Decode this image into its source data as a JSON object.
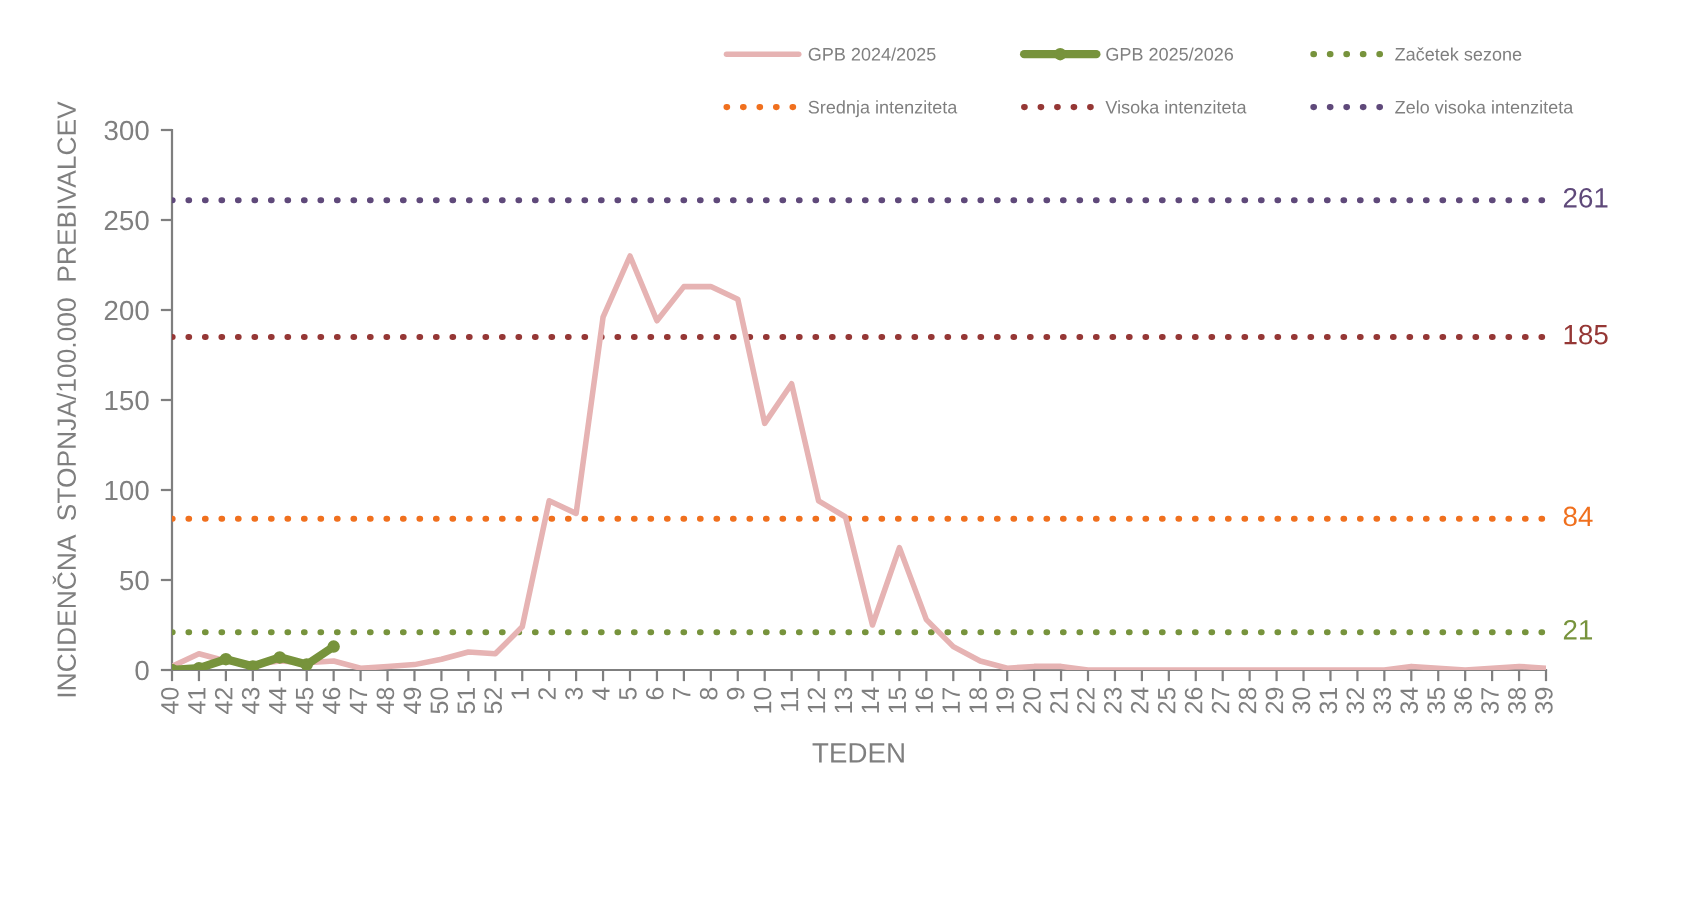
{
  "chart_data": {
    "type": "line",
    "xlabel": "TEDEN",
    "ylabel": "INCIDENČNA  STOPNJA/100.000  PREBIVALCEV",
    "categories": [
      "40",
      "41",
      "42",
      "43",
      "44",
      "45",
      "46",
      "47",
      "48",
      "49",
      "50",
      "51",
      "52",
      "1",
      "2",
      "3",
      "4",
      "5",
      "6",
      "7",
      "8",
      "9",
      "10",
      "11",
      "12",
      "13",
      "14",
      "15",
      "16",
      "17",
      "18",
      "19",
      "20",
      "21",
      "22",
      "23",
      "24",
      "25",
      "26",
      "27",
      "28",
      "29",
      "30",
      "31",
      "32",
      "33",
      "34",
      "35",
      "36",
      "37",
      "38",
      "39"
    ],
    "series": [
      {
        "name": "GPB 2024/2025",
        "color": "#e6b3b3",
        "line_style": "solid",
        "values": [
          2,
          9,
          5,
          3,
          5,
          4,
          5,
          1,
          2,
          3,
          6,
          10,
          9,
          24,
          94,
          87,
          196,
          230,
          194,
          213,
          213,
          206,
          137,
          159,
          94,
          85,
          25,
          68,
          28,
          13,
          5,
          1,
          2,
          2,
          0,
          0,
          0,
          0,
          0,
          0,
          0,
          0,
          0,
          0,
          0,
          0,
          2,
          1,
          0,
          1,
          2,
          1
        ]
      },
      {
        "name": "GPB 2025/2026",
        "color": "#77933c",
        "line_style": "solid",
        "marker": "circle",
        "values": [
          0,
          1,
          6,
          2,
          7,
          3,
          13,
          null,
          null,
          null,
          null,
          null,
          null,
          null,
          null,
          null,
          null,
          null,
          null,
          null,
          null,
          null,
          null,
          null,
          null,
          null,
          null,
          null,
          null,
          null,
          null,
          null,
          null,
          null,
          null,
          null,
          null,
          null,
          null,
          null,
          null,
          null,
          null,
          null,
          null,
          null,
          null,
          null,
          null,
          null,
          null,
          null
        ]
      }
    ],
    "ref_lines": [
      {
        "axis": "y",
        "value": 21,
        "label": "Začetek sezone",
        "color": "#77933c",
        "line_style": "dotted"
      },
      {
        "axis": "y",
        "value": 84,
        "label": "Srednja intenziteta",
        "color": "#f0701e",
        "line_style": "dotted"
      },
      {
        "axis": "y",
        "value": 185,
        "label": "Visoka intenziteta",
        "color": "#953735",
        "line_style": "dotted"
      },
      {
        "axis": "y",
        "value": 261,
        "label": "Zelo visoka intenziteta",
        "color": "#5f497a",
        "line_style": "dotted"
      }
    ],
    "annotations": [
      "21",
      "84",
      "185",
      "261"
    ],
    "ylim": [
      0,
      300
    ],
    "yticks": [
      0,
      50,
      100,
      150,
      200,
      250,
      300
    ],
    "grid": false,
    "legend": "top right"
  }
}
